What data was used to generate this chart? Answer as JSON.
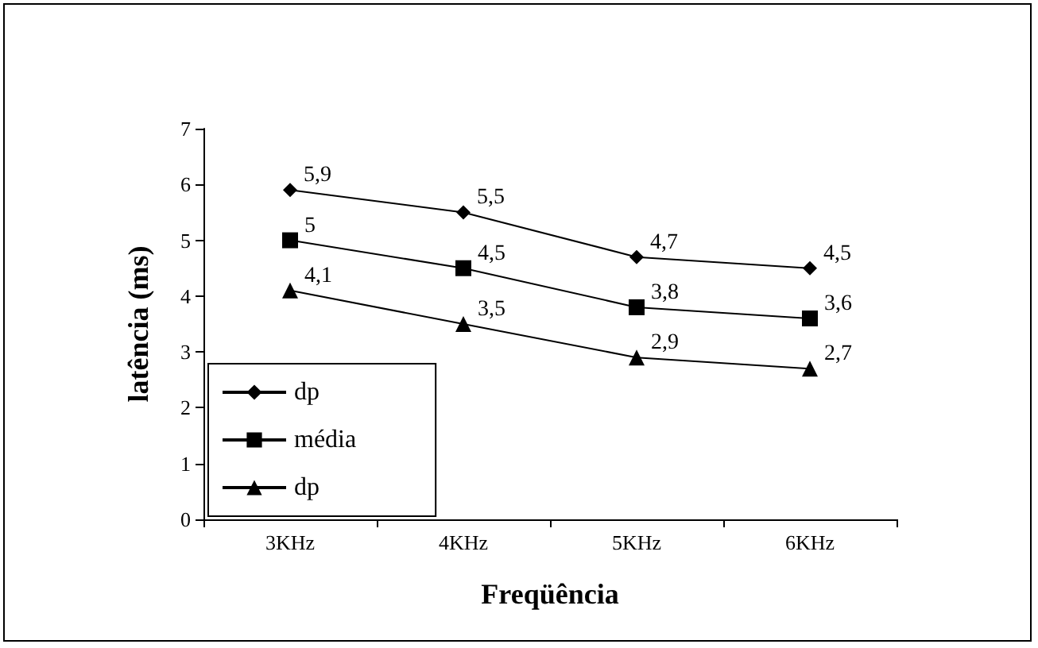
{
  "chart_data": {
    "type": "line",
    "xlabel": "Freqüência",
    "ylabel": "latência (ms)",
    "categories": [
      "3KHz",
      "4KHz",
      "5KHz",
      "6KHz"
    ],
    "series": [
      {
        "name": "dp",
        "color": "#000000",
        "marker": "diamond",
        "values": [
          5.9,
          5.5,
          4.7,
          4.5
        ],
        "value_labels": [
          "5,9",
          "5,5",
          "4,7",
          "4,5"
        ]
      },
      {
        "name": "média",
        "color": "#000000",
        "marker": "square",
        "values": [
          5,
          4.5,
          3.8,
          3.6
        ],
        "value_labels": [
          "5",
          "4,5",
          "3,8",
          "3,6"
        ]
      },
      {
        "name": "dp",
        "color": "#000000",
        "marker": "triangle",
        "values": [
          4.1,
          3.5,
          2.9,
          2.7
        ],
        "value_labels": [
          "4,1",
          "3,5",
          "2,9",
          "2,7"
        ]
      }
    ],
    "ylim": [
      0,
      7
    ],
    "yticks": [
      0,
      1,
      2,
      3,
      4,
      5,
      6,
      7
    ],
    "grid": false,
    "legend": "bottom left"
  }
}
